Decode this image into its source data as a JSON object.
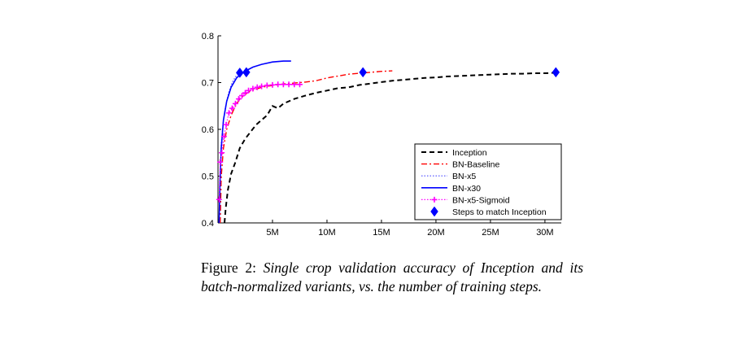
{
  "chart_data": {
    "type": "line",
    "title": "",
    "xlabel": "",
    "ylabel": "",
    "xlim": [
      0,
      31500000
    ],
    "ylim": [
      0.4,
      0.8
    ],
    "x_ticks": [
      5000000,
      10000000,
      15000000,
      20000000,
      25000000,
      30000000
    ],
    "x_tick_labels": [
      "5M",
      "10M",
      "15M",
      "20M",
      "25M",
      "30M"
    ],
    "y_ticks": [
      0.4,
      0.5,
      0.6,
      0.7,
      0.8
    ],
    "y_tick_labels": [
      "0.4",
      "0.5",
      "0.6",
      "0.7",
      "0.8"
    ],
    "grid": false,
    "legend_position": "bottom-right",
    "series": [
      {
        "name": "Inception",
        "color": "#000000",
        "style": "dashed",
        "x": [
          600000,
          700000,
          900000,
          1200000,
          1600000,
          2000000,
          2500000,
          3000000,
          3500000,
          4000000,
          4500000,
          5000000,
          5500000,
          6000000,
          7000000,
          8000000,
          9000000,
          10000000,
          11000000,
          12000000,
          13000000,
          14000000,
          15000000,
          16000000,
          17000000,
          18000000,
          19000000,
          20000000,
          21000000,
          22000000,
          23000000,
          24000000,
          25000000,
          26000000,
          27000000,
          28000000,
          29000000,
          30000000,
          31000000
        ],
        "y": [
          0.4,
          0.43,
          0.47,
          0.505,
          0.53,
          0.56,
          0.58,
          0.595,
          0.61,
          0.62,
          0.63,
          0.65,
          0.645,
          0.655,
          0.665,
          0.672,
          0.678,
          0.683,
          0.688,
          0.69,
          0.695,
          0.698,
          0.701,
          0.704,
          0.706,
          0.708,
          0.71,
          0.711,
          0.713,
          0.714,
          0.715,
          0.716,
          0.717,
          0.718,
          0.719,
          0.719,
          0.72,
          0.72,
          0.721
        ]
      },
      {
        "name": "BN-Baseline",
        "color": "#ff0000",
        "style": "dashdot",
        "x": [
          200000,
          300000,
          500000,
          800000,
          1200000,
          1600000,
          2000000,
          2500000,
          3000000,
          4000000,
          5000000,
          6000000,
          7000000,
          8000000,
          9000000,
          10000000,
          11000000,
          12000000,
          13000000,
          14000000,
          15000000,
          16000000
        ],
        "y": [
          0.4,
          0.5,
          0.56,
          0.6,
          0.63,
          0.65,
          0.665,
          0.675,
          0.682,
          0.69,
          0.694,
          0.697,
          0.699,
          0.701,
          0.704,
          0.71,
          0.714,
          0.718,
          0.72,
          0.722,
          0.724,
          0.725
        ]
      },
      {
        "name": "BN-x5",
        "color": "#4a4aff",
        "style": "dotted",
        "x": [
          100000,
          200000,
          300000,
          500000,
          700000,
          1000000,
          1300000,
          1600000,
          2000000
        ],
        "y": [
          0.4,
          0.5,
          0.57,
          0.62,
          0.65,
          0.68,
          0.7,
          0.712,
          0.722
        ]
      },
      {
        "name": "BN-x30",
        "color": "#0000ff",
        "style": "solid",
        "x": [
          100000,
          200000,
          300000,
          500000,
          800000,
          1200000,
          1700000,
          2200000,
          2700000,
          3200000,
          4000000,
          5000000,
          6000000,
          6700000
        ],
        "y": [
          0.4,
          0.5,
          0.56,
          0.62,
          0.66,
          0.69,
          0.71,
          0.72,
          0.727,
          0.733,
          0.739,
          0.744,
          0.746,
          0.746
        ]
      },
      {
        "name": "BN-x5-Sigmoid",
        "color": "#ff00ff",
        "style": "dotted-plus",
        "x": [
          100000,
          200000,
          350000,
          550000,
          750000,
          1000000,
          1300000,
          1600000,
          1900000,
          2200000,
          2500000,
          2800000,
          3200000,
          3600000,
          4000000,
          4500000,
          5000000,
          5500000,
          6000000,
          6500000,
          7000000,
          7500000
        ],
        "y": [
          0.45,
          0.53,
          0.55,
          0.585,
          0.61,
          0.635,
          0.645,
          0.655,
          0.665,
          0.672,
          0.678,
          0.683,
          0.687,
          0.69,
          0.692,
          0.694,
          0.695,
          0.696,
          0.696,
          0.696,
          0.696,
          0.696
        ]
      },
      {
        "name": "Steps to match Inception",
        "color": "#0000ff",
        "style": "diamond-markers",
        "x": [
          2000000,
          2600000,
          13300000,
          31000000
        ],
        "y": [
          0.721,
          0.722,
          0.722,
          0.722
        ]
      }
    ]
  },
  "caption": {
    "label": "Figure 2:",
    "text": "Single crop validation accuracy of Inception and its batch-normalized variants, vs.  the number of training steps."
  }
}
